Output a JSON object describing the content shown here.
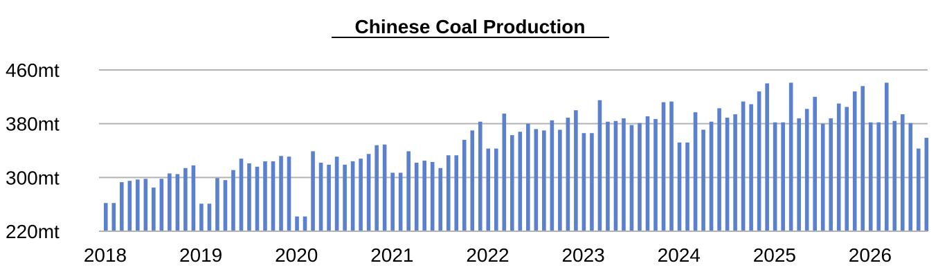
{
  "chart_data": {
    "type": "bar",
    "title": "Chinese Coal Production",
    "xlabel": "",
    "ylabel": "",
    "unit": "mt",
    "ylim": [
      220,
      460
    ],
    "y_ticks": [
      220,
      300,
      380,
      460
    ],
    "y_tick_labels": [
      "220mt",
      "300mt",
      "380mt",
      "460mt"
    ],
    "x_tick_labels": [
      "2018",
      "2019",
      "2020",
      "2021",
      "2022",
      "2023",
      "2024",
      "2025",
      "2026"
    ],
    "bars_per_year": 12,
    "grid": true,
    "legend": "none",
    "bar_color": "#5B80CE",
    "grid_color": "#B3B3B3",
    "values": [
      262,
      262,
      293,
      295,
      297,
      298,
      285,
      298,
      306,
      305,
      314,
      318,
      261,
      261,
      299,
      296,
      311,
      328,
      321,
      316,
      324,
      324,
      332,
      331,
      242,
      242,
      339,
      322,
      319,
      331,
      319,
      324,
      328,
      335,
      348,
      349,
      307,
      307,
      339,
      322,
      325,
      323,
      314,
      333,
      333,
      356,
      370,
      383,
      343,
      343,
      395,
      363,
      368,
      380,
      372,
      370,
      385,
      371,
      389,
      400,
      366,
      366,
      415,
      383,
      384,
      388,
      378,
      381,
      391,
      387,
      412,
      413,
      352,
      352,
      397,
      371,
      383,
      403,
      389,
      394,
      413,
      409,
      428,
      440,
      382,
      382,
      441,
      388,
      402,
      420,
      380,
      388,
      410,
      405,
      428,
      436,
      382,
      382,
      441,
      384,
      394,
      381,
      343,
      359
    ]
  }
}
